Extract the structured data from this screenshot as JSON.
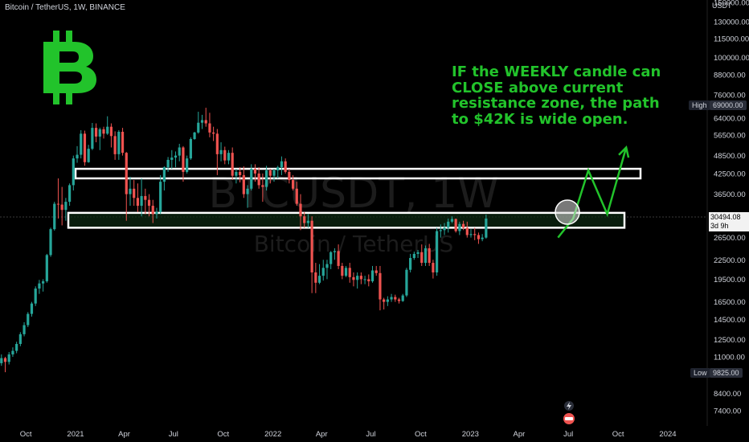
{
  "header": {
    "title": "Bitcoin / TetherUS, 1W, BINANCE",
    "currency": "USDT"
  },
  "watermark": {
    "symbol": "BTCUSDT, 1W",
    "name": "Bitcoin / TetherUS"
  },
  "annotation": {
    "lines": [
      "IF the WEEKLY candle can",
      "CLOSE above current",
      "resistance zone, the path",
      "to $42K is wide open."
    ]
  },
  "colors": {
    "up": "#26a69a",
    "down": "#ef5350",
    "accent_green": "#22c32b",
    "zone_fill": "#0d2a12"
  },
  "markers": {
    "high_label": "High",
    "high_value": "69000.00",
    "low_label": "Low",
    "low_value": "9825.00",
    "last_price": "30494.08",
    "countdown": "3d 9h"
  },
  "chart_data": {
    "type": "candlestick",
    "title": "Bitcoin / TetherUS, 1W, BINANCE",
    "yscale": "log",
    "ylim": [
      6900,
      150000
    ],
    "y_ticks": [
      150000,
      130000,
      115000,
      100000,
      88000,
      76000,
      64000,
      56500,
      48500,
      42500,
      36500,
      30494.08,
      26500,
      22500,
      19500,
      16500,
      14500,
      12500,
      11000,
      9825,
      8400,
      7400
    ],
    "x_ticks": [
      "Oct",
      "2021",
      "Apr",
      "Jul",
      "Oct",
      "2022",
      "Apr",
      "Jul",
      "Oct",
      "2023",
      "Apr",
      "Jul",
      "Oct",
      "2024"
    ],
    "resistance_zones": [
      {
        "low": 41000,
        "high": 44000
      },
      {
        "low": 28500,
        "high": 31800
      }
    ],
    "projection_path": [
      {
        "date": "2023-06-12",
        "price": 26500
      },
      {
        "date": "2023-07-10",
        "price": 30500
      },
      {
        "date": "2023-08-07",
        "price": 43500
      },
      {
        "date": "2023-09-11",
        "price": 31500
      },
      {
        "date": "2023-10-16",
        "price": 51500
      }
    ],
    "candles_weekly_ohlc": [
      [
        11500,
        12000,
        10800,
        11000
      ],
      [
        11000,
        11300,
        10200,
        10500
      ],
      [
        10500,
        11200,
        10300,
        10900
      ],
      [
        10900,
        11000,
        9825,
        10600
      ],
      [
        10600,
        11400,
        10400,
        11200
      ],
      [
        11200,
        11800,
        11000,
        11500
      ],
      [
        11500,
        12300,
        11300,
        12100
      ],
      [
        12100,
        13200,
        11900,
        13000
      ],
      [
        13000,
        14200,
        12800,
        13900
      ],
      [
        13900,
        15300,
        13700,
        15100
      ],
      [
        15100,
        16500,
        14800,
        16300
      ],
      [
        16300,
        18500,
        16000,
        18200
      ],
      [
        18200,
        19400,
        17500,
        18900
      ],
      [
        18900,
        19500,
        17800,
        19200
      ],
      [
        19200,
        23500,
        19000,
        23300
      ],
      [
        23300,
        28500,
        23000,
        28200
      ],
      [
        28200,
        34500,
        27900,
        34000
      ],
      [
        34000,
        41000,
        30500,
        33800
      ],
      [
        33800,
        38500,
        29000,
        32500
      ],
      [
        32500,
        35500,
        30000,
        34500
      ],
      [
        34500,
        39500,
        33500,
        39000
      ],
      [
        39000,
        48500,
        37500,
        47500
      ],
      [
        47500,
        52000,
        46000,
        48800
      ],
      [
        48800,
        58500,
        47500,
        57000
      ],
      [
        57000,
        58300,
        45000,
        46200
      ],
      [
        46200,
        52500,
        46000,
        51000
      ],
      [
        51000,
        61700,
        50500,
        59500
      ],
      [
        59500,
        61500,
        53500,
        55800
      ],
      [
        55800,
        59600,
        50500,
        58900
      ],
      [
        58900,
        60000,
        55000,
        57000
      ],
      [
        57000,
        64800,
        56500,
        60000
      ],
      [
        60000,
        61500,
        51500,
        56000
      ],
      [
        56000,
        58000,
        47000,
        49000
      ],
      [
        49000,
        58500,
        47000,
        57800
      ],
      [
        57800,
        59500,
        48500,
        49500
      ],
      [
        49500,
        49800,
        30000,
        36500
      ],
      [
        36500,
        41500,
        33500,
        38000
      ],
      [
        38000,
        40500,
        33500,
        35500
      ],
      [
        35500,
        39500,
        32000,
        33500
      ],
      [
        33500,
        41000,
        31000,
        36000
      ],
      [
        36000,
        38000,
        31500,
        35000
      ],
      [
        35000,
        36500,
        31000,
        33500
      ],
      [
        33500,
        35000,
        29500,
        31500
      ],
      [
        31500,
        33000,
        30500,
        32000
      ],
      [
        32000,
        42000,
        31500,
        40000
      ],
      [
        40000,
        44800,
        37500,
        44500
      ],
      [
        44500,
        48000,
        43000,
        47000
      ],
      [
        47000,
        50500,
        44000,
        47800
      ],
      [
        47800,
        50000,
        44500,
        48500
      ],
      [
        48500,
        52900,
        46500,
        51500
      ],
      [
        51500,
        52000,
        40000,
        43000
      ],
      [
        43000,
        48500,
        42500,
        47500
      ],
      [
        47500,
        55500,
        47000,
        54800
      ],
      [
        54800,
        57800,
        54500,
        57500
      ],
      [
        57500,
        67000,
        57000,
        61800
      ],
      [
        61800,
        65500,
        59000,
        63000
      ],
      [
        63000,
        69000,
        60000,
        61500
      ],
      [
        61500,
        66500,
        55500,
        57500
      ],
      [
        57500,
        60000,
        54000,
        57000
      ],
      [
        57000,
        59000,
        42000,
        49000
      ],
      [
        49000,
        53500,
        46500,
        50500
      ],
      [
        50500,
        51800,
        45500,
        46800
      ],
      [
        46800,
        50500,
        45500,
        49500
      ],
      [
        49500,
        51500,
        40500,
        41800
      ],
      [
        41800,
        44000,
        39500,
        43000
      ],
      [
        43000,
        44500,
        39800,
        42000
      ],
      [
        42000,
        44800,
        35500,
        36500
      ],
      [
        36500,
        39000,
        33000,
        38000
      ],
      [
        38000,
        45500,
        37500,
        44000
      ],
      [
        44000,
        45500,
        40000,
        42500
      ],
      [
        42500,
        44500,
        38000,
        39000
      ],
      [
        39000,
        42500,
        34500,
        38500
      ],
      [
        38500,
        45000,
        37500,
        43500
      ],
      [
        43500,
        44000,
        39500,
        41800
      ],
      [
        41800,
        44000,
        40000,
        43500
      ],
      [
        43500,
        45000,
        41000,
        44500
      ],
      [
        44500,
        48200,
        42000,
        46500
      ],
      [
        46500,
        47500,
        42500,
        43000
      ],
      [
        43000,
        44000,
        39500,
        40500
      ],
      [
        40500,
        42000,
        37500,
        38000
      ],
      [
        38000,
        40000,
        33500,
        34000
      ],
      [
        34000,
        36500,
        28000,
        31000
      ],
      [
        31000,
        32000,
        28500,
        29500
      ],
      [
        29500,
        31500,
        28500,
        30000
      ],
      [
        30000,
        31000,
        17600,
        20500
      ],
      [
        20500,
        22000,
        17600,
        19000
      ],
      [
        19000,
        21800,
        18800,
        20000
      ],
      [
        20000,
        22500,
        19300,
        21200
      ],
      [
        21200,
        22500,
        19500,
        21800
      ],
      [
        21800,
        24000,
        21000,
        23800
      ],
      [
        23800,
        24500,
        22500,
        24000
      ],
      [
        24000,
        25200,
        21000,
        21500
      ],
      [
        21500,
        22000,
        19500,
        20000
      ],
      [
        20000,
        21500,
        19800,
        21200
      ],
      [
        21200,
        22000,
        19000,
        19800
      ],
      [
        19800,
        20500,
        18500,
        19400
      ],
      [
        19400,
        20500,
        18200,
        20000
      ],
      [
        20000,
        20500,
        18800,
        19500
      ],
      [
        19500,
        20000,
        18800,
        19500
      ],
      [
        19500,
        20200,
        18500,
        19200
      ],
      [
        19200,
        21500,
        19000,
        20800
      ],
      [
        20800,
        21500,
        20000,
        20400
      ],
      [
        20400,
        21500,
        15500,
        16800
      ],
      [
        16800,
        17000,
        15600,
        16500
      ],
      [
        16500,
        17200,
        16000,
        16800
      ],
      [
        16800,
        17500,
        16500,
        17100
      ],
      [
        17100,
        17400,
        16500,
        16800
      ],
      [
        16800,
        17000,
        16300,
        16600
      ],
      [
        16600,
        17500,
        16500,
        17300
      ],
      [
        17300,
        21200,
        17100,
        20900
      ],
      [
        20900,
        23500,
        20500,
        22800
      ],
      [
        22800,
        23900,
        22500,
        23500
      ],
      [
        23500,
        24200,
        22800,
        23800
      ],
      [
        23800,
        25200,
        21500,
        22000
      ],
      [
        22000,
        25000,
        21500,
        24500
      ],
      [
        24500,
        25300,
        21500,
        22000
      ],
      [
        22000,
        22500,
        19600,
        20500
      ],
      [
        20500,
        28500,
        20000,
        27800
      ],
      [
        27800,
        29200,
        26500,
        28000
      ],
      [
        28000,
        29500,
        27000,
        28500
      ],
      [
        28500,
        30500,
        27500,
        29800
      ],
      [
        29800,
        31000,
        29500,
        30400
      ],
      [
        30400,
        30500,
        27500,
        27800
      ],
      [
        27800,
        29800,
        27000,
        29300
      ],
      [
        29300,
        30000,
        28000,
        28500
      ],
      [
        28500,
        29800,
        26500,
        27000
      ],
      [
        27000,
        28200,
        26500,
        27200
      ],
      [
        27200,
        28500,
        26000,
        27000
      ],
      [
        27000,
        27500,
        25300,
        26200
      ],
      [
        26200,
        27200,
        25800,
        26500
      ],
      [
        26500,
        31400,
        26300,
        30500
      ]
    ]
  }
}
